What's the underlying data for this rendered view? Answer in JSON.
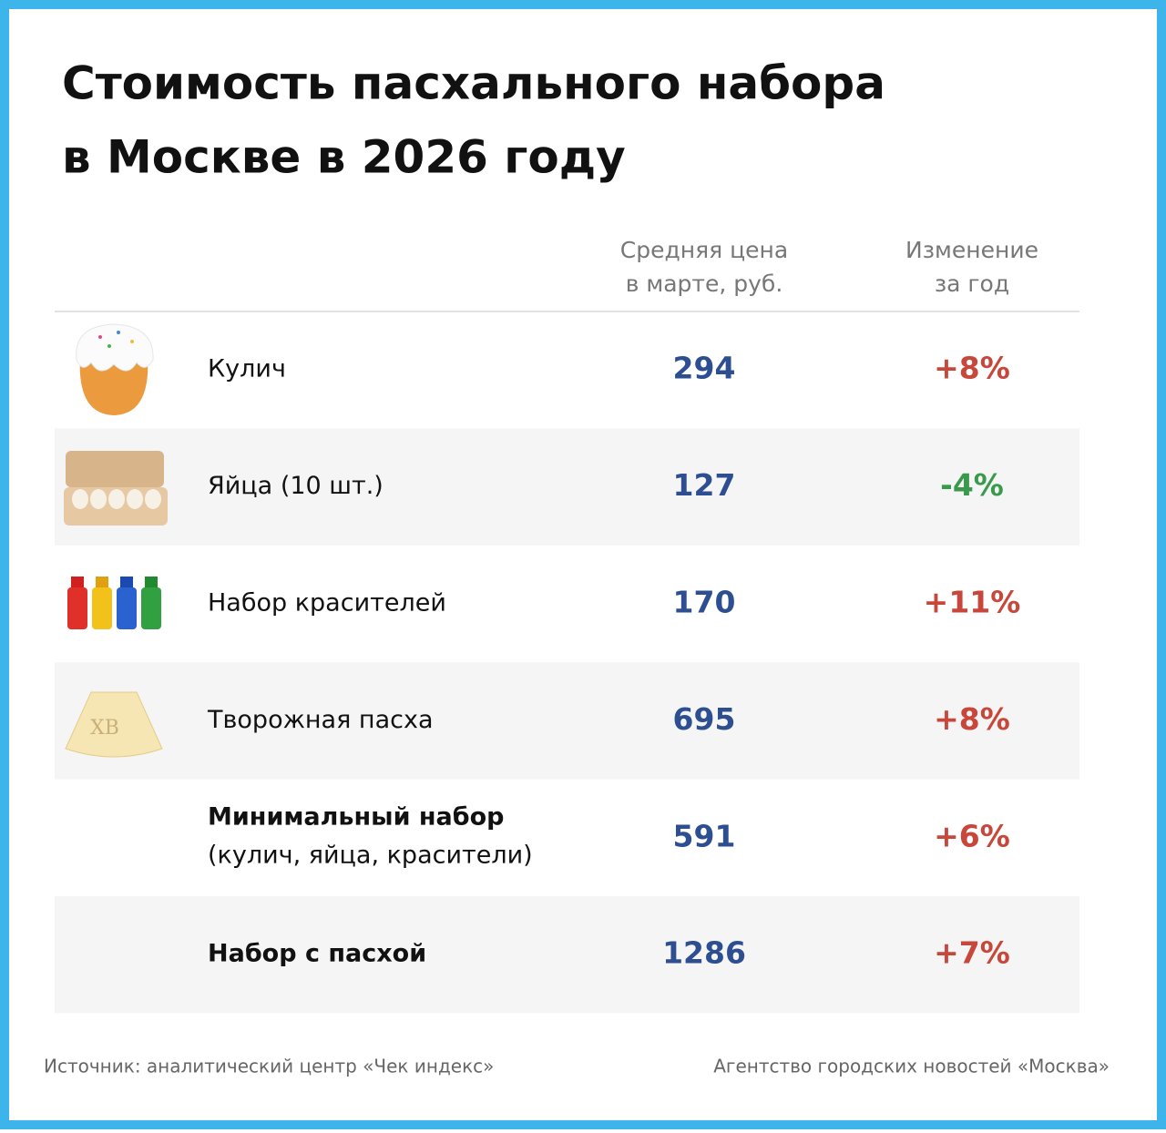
{
  "header": {
    "title_line1": "Стоимость пасхального набора",
    "title_line2": "в Москве в 2026 году"
  },
  "table": {
    "columns": {
      "price_line1": "Средняя цена",
      "price_line2": "в марте, руб.",
      "change_line1": "Изменение",
      "change_line2": "за год"
    },
    "rows": [
      {
        "label": "Кулич",
        "price": 294,
        "change": "+8%",
        "change_color": "#c8473a",
        "bold": false,
        "shaded": false
      },
      {
        "label": "Яйца (10 шт.)",
        "price": 127,
        "change": "-4%",
        "change_color": "#3a9a4c",
        "bold": false,
        "shaded": true
      },
      {
        "label": "Набор красителей",
        "price": 170,
        "change": "+11%",
        "change_color": "#c8473a",
        "bold": false,
        "shaded": false
      },
      {
        "label": "Творожная пасха",
        "price": 695,
        "change": "+8%",
        "change_color": "#c8473a",
        "bold": false,
        "shaded": true
      },
      {
        "label": "Минимальный набор",
        "sublabel": "(кулич, яйца, красители)",
        "price": 591,
        "change": "+6%",
        "change_color": "#c8473a",
        "bold": true,
        "shaded": false
      },
      {
        "label": "Набор с пасхой",
        "price": 1286,
        "change": "+7%",
        "change_color": "#c8473a",
        "bold": true,
        "shaded": true
      }
    ],
    "price_color": "#2d4f91"
  },
  "footer": {
    "source": "Источник: аналитический центр «Чек индекс»",
    "agency": "Агентство городских новостей «Москва»"
  }
}
